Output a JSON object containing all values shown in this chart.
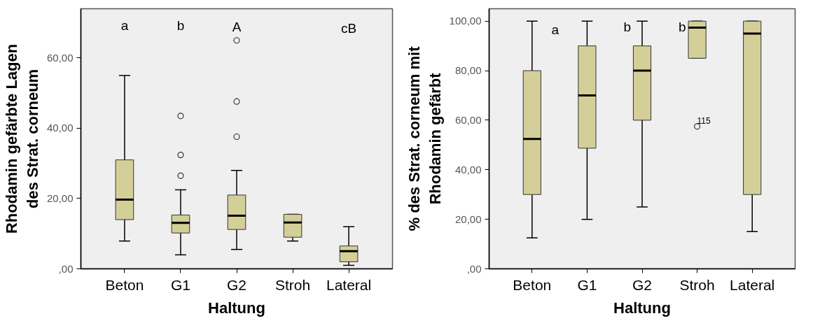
{
  "chart_data": [
    {
      "type": "box",
      "xlabel": "Haltung",
      "ylabel": "Rhodamin gefärbte Lagen\ndes Strat. corneum",
      "categories": [
        "Beton",
        "G1",
        "G2",
        "Stroh",
        "Lateral"
      ],
      "color": "#d4cf98",
      "boxes": [
        {
          "low": 7.9,
          "q1": 14.0,
          "median": 19.7,
          "q3": 31.0,
          "high": 55.0
        },
        {
          "low": 4.0,
          "q1": 10.2,
          "median": 13.1,
          "q3": 15.3,
          "high": 22.5,
          "outliers": [
            26.5,
            32.4,
            43.5
          ]
        },
        {
          "low": 5.5,
          "q1": 11.2,
          "median": 15.1,
          "q3": 21.0,
          "high": 28.0,
          "outliers": [
            37.6,
            47.6,
            65.0
          ]
        },
        {
          "low": 7.9,
          "q1": 9.0,
          "median": 13.2,
          "q3": 15.5,
          "high": 15.5
        },
        {
          "low": 1.0,
          "q1": 2.0,
          "median": 5.0,
          "q3": 6.5,
          "high": 12.0
        }
      ],
      "ylim": [
        0,
        74
      ],
      "yticks": [
        {
          "value": 0,
          "label": ",00"
        },
        {
          "value": 20,
          "label": "20,00"
        },
        {
          "value": 40,
          "label": "40,00"
        },
        {
          "value": 60,
          "label": "60,00"
        }
      ],
      "grid": false,
      "annotations": [
        "a",
        "b",
        "A",
        "cB"
      ]
    },
    {
      "type": "box",
      "xlabel": "Haltung",
      "ylabel": "% des Strat. corneum mit\nRhodamin gefärbt",
      "categories": [
        "Beton",
        "G1",
        "G2",
        "Stroh",
        "Lateral"
      ],
      "color": "#d4cf98",
      "boxes": [
        {
          "low": 12.5,
          "q1": 30.0,
          "median": 52.4,
          "q3": 80.0,
          "high": 100.0
        },
        {
          "low": 20.0,
          "q1": 48.7,
          "median": 70.0,
          "q3": 90.0,
          "high": 100.0
        },
        {
          "low": 25.0,
          "q1": 60.0,
          "median": 80.0,
          "q3": 90.0,
          "high": 100.0
        },
        {
          "low": 85.0,
          "q1": 85.0,
          "median": 97.4,
          "q3": 100.0,
          "high": 100.0,
          "outliers": [
            57.5
          ]
        },
        {
          "low": 15.0,
          "q1": 30.0,
          "median": 95.0,
          "q3": 100.0,
          "high": 100.0
        }
      ],
      "ylim": [
        0,
        105
      ],
      "yticks": [
        {
          "value": 0,
          "label": ",00"
        },
        {
          "value": 20,
          "label": "20,00"
        },
        {
          "value": 40,
          "label": "40,00"
        },
        {
          "value": 60,
          "label": "60,00"
        },
        {
          "value": 80,
          "label": "80,00"
        },
        {
          "value": 100,
          "label": "100,00"
        }
      ],
      "grid": false,
      "annotations": [
        "a",
        "b",
        "b",
        "115"
      ]
    }
  ]
}
